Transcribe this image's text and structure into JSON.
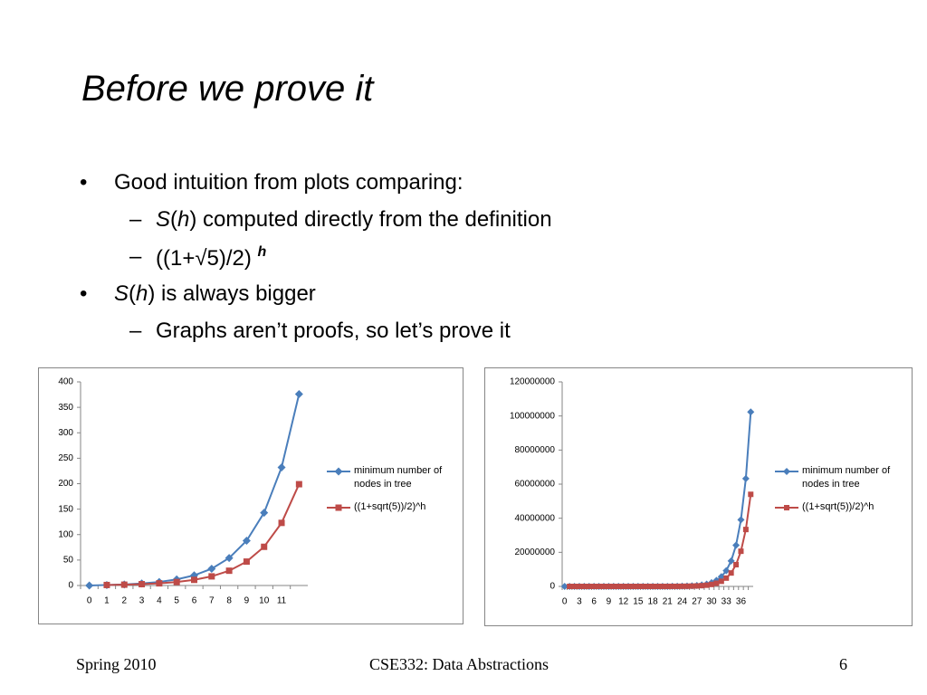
{
  "title": "Before we prove it",
  "body": {
    "bullets": [
      {
        "text": "Good intuition from plots comparing:",
        "sub": [
          {
            "parts": [
              "S",
              "(",
              "h",
              ") computed directly from the definition"
            ]
          },
          {
            "parts": [
              "((1+√5)/2)",
              "h"
            ]
          }
        ]
      },
      {
        "parts": [
          "S",
          "(",
          "h",
          ") is always bigger"
        ],
        "sub": [
          {
            "parts": [
              "Graphs aren’t proofs, so let’s prove it"
            ]
          }
        ]
      }
    ]
  },
  "chart_data": [
    {
      "type": "line",
      "categories": [
        0,
        1,
        2,
        3,
        4,
        5,
        6,
        7,
        8,
        9,
        10,
        11,
        null
      ],
      "ylim": [
        0,
        400
      ],
      "yticks": [
        0,
        50,
        100,
        150,
        200,
        250,
        300,
        350,
        400
      ],
      "series": [
        {
          "name": "minimum number of nodes in tree",
          "color": "#4a7ebb",
          "marker": "diamond",
          "values": [
            0,
            1,
            2,
            4,
            7,
            12,
            20,
            33,
            54,
            88,
            143,
            232,
            376
          ]
        },
        {
          "name": "((1+sqrt(5))/2)^h",
          "color": "#be4b48",
          "marker": "square",
          "values": [
            null,
            1,
            1.618,
            2.618,
            4.236,
            6.854,
            11.09,
            17.94,
            29.03,
            46.98,
            76.01,
            122.99,
            199.0
          ]
        }
      ]
    },
    {
      "type": "line",
      "categories": [
        0,
        null,
        null,
        3,
        null,
        null,
        6,
        null,
        null,
        9,
        null,
        null,
        12,
        null,
        null,
        15,
        null,
        null,
        18,
        null,
        null,
        21,
        null,
        null,
        24,
        null,
        null,
        27,
        null,
        null,
        30,
        null,
        null,
        33,
        null,
        null,
        36,
        null,
        null
      ],
      "ylim": [
        0,
        120000000
      ],
      "yticks": [
        0,
        20000000,
        40000000,
        60000000,
        80000000,
        100000000,
        120000000
      ],
      "series": [
        {
          "name": "minimum number of nodes in tree",
          "color": "#4a7ebb",
          "marker": "diamond",
          "values": [
            0,
            1,
            2,
            4,
            7,
            12,
            20,
            33,
            54,
            88,
            143,
            232,
            376,
            609,
            986,
            1596,
            2583,
            4180,
            6764,
            10945,
            17710,
            28656,
            46367,
            75024,
            121392,
            196417,
            317810,
            514228,
            832039,
            1346268,
            2178308,
            3524577,
            5702886,
            9227464,
            14930351,
            24157816,
            39088168,
            63245985,
            102334154
          ]
        },
        {
          "name": "((1+sqrt(5))/2)^h",
          "color": "#be4b48",
          "marker": "square",
          "values": [
            null,
            1,
            1.618,
            2.618,
            4.236,
            6.854,
            11.09,
            17.94,
            29.03,
            46.98,
            76.01,
            122.99,
            199.0,
            322.0,
            521.0,
            843.0,
            1364.0,
            2207.0,
            3571.0,
            5778.0,
            9349.0,
            15127,
            24476,
            39603,
            64079,
            103682,
            167761,
            271443,
            439204,
            710647,
            1149851,
            1860498,
            3010349,
            4870847,
            7881196,
            12752043,
            20633239,
            33385282,
            54018521
          ]
        }
      ]
    }
  ],
  "footer": {
    "left": "Spring 2010",
    "center": "CSE332: Data Abstractions",
    "page": 6
  }
}
